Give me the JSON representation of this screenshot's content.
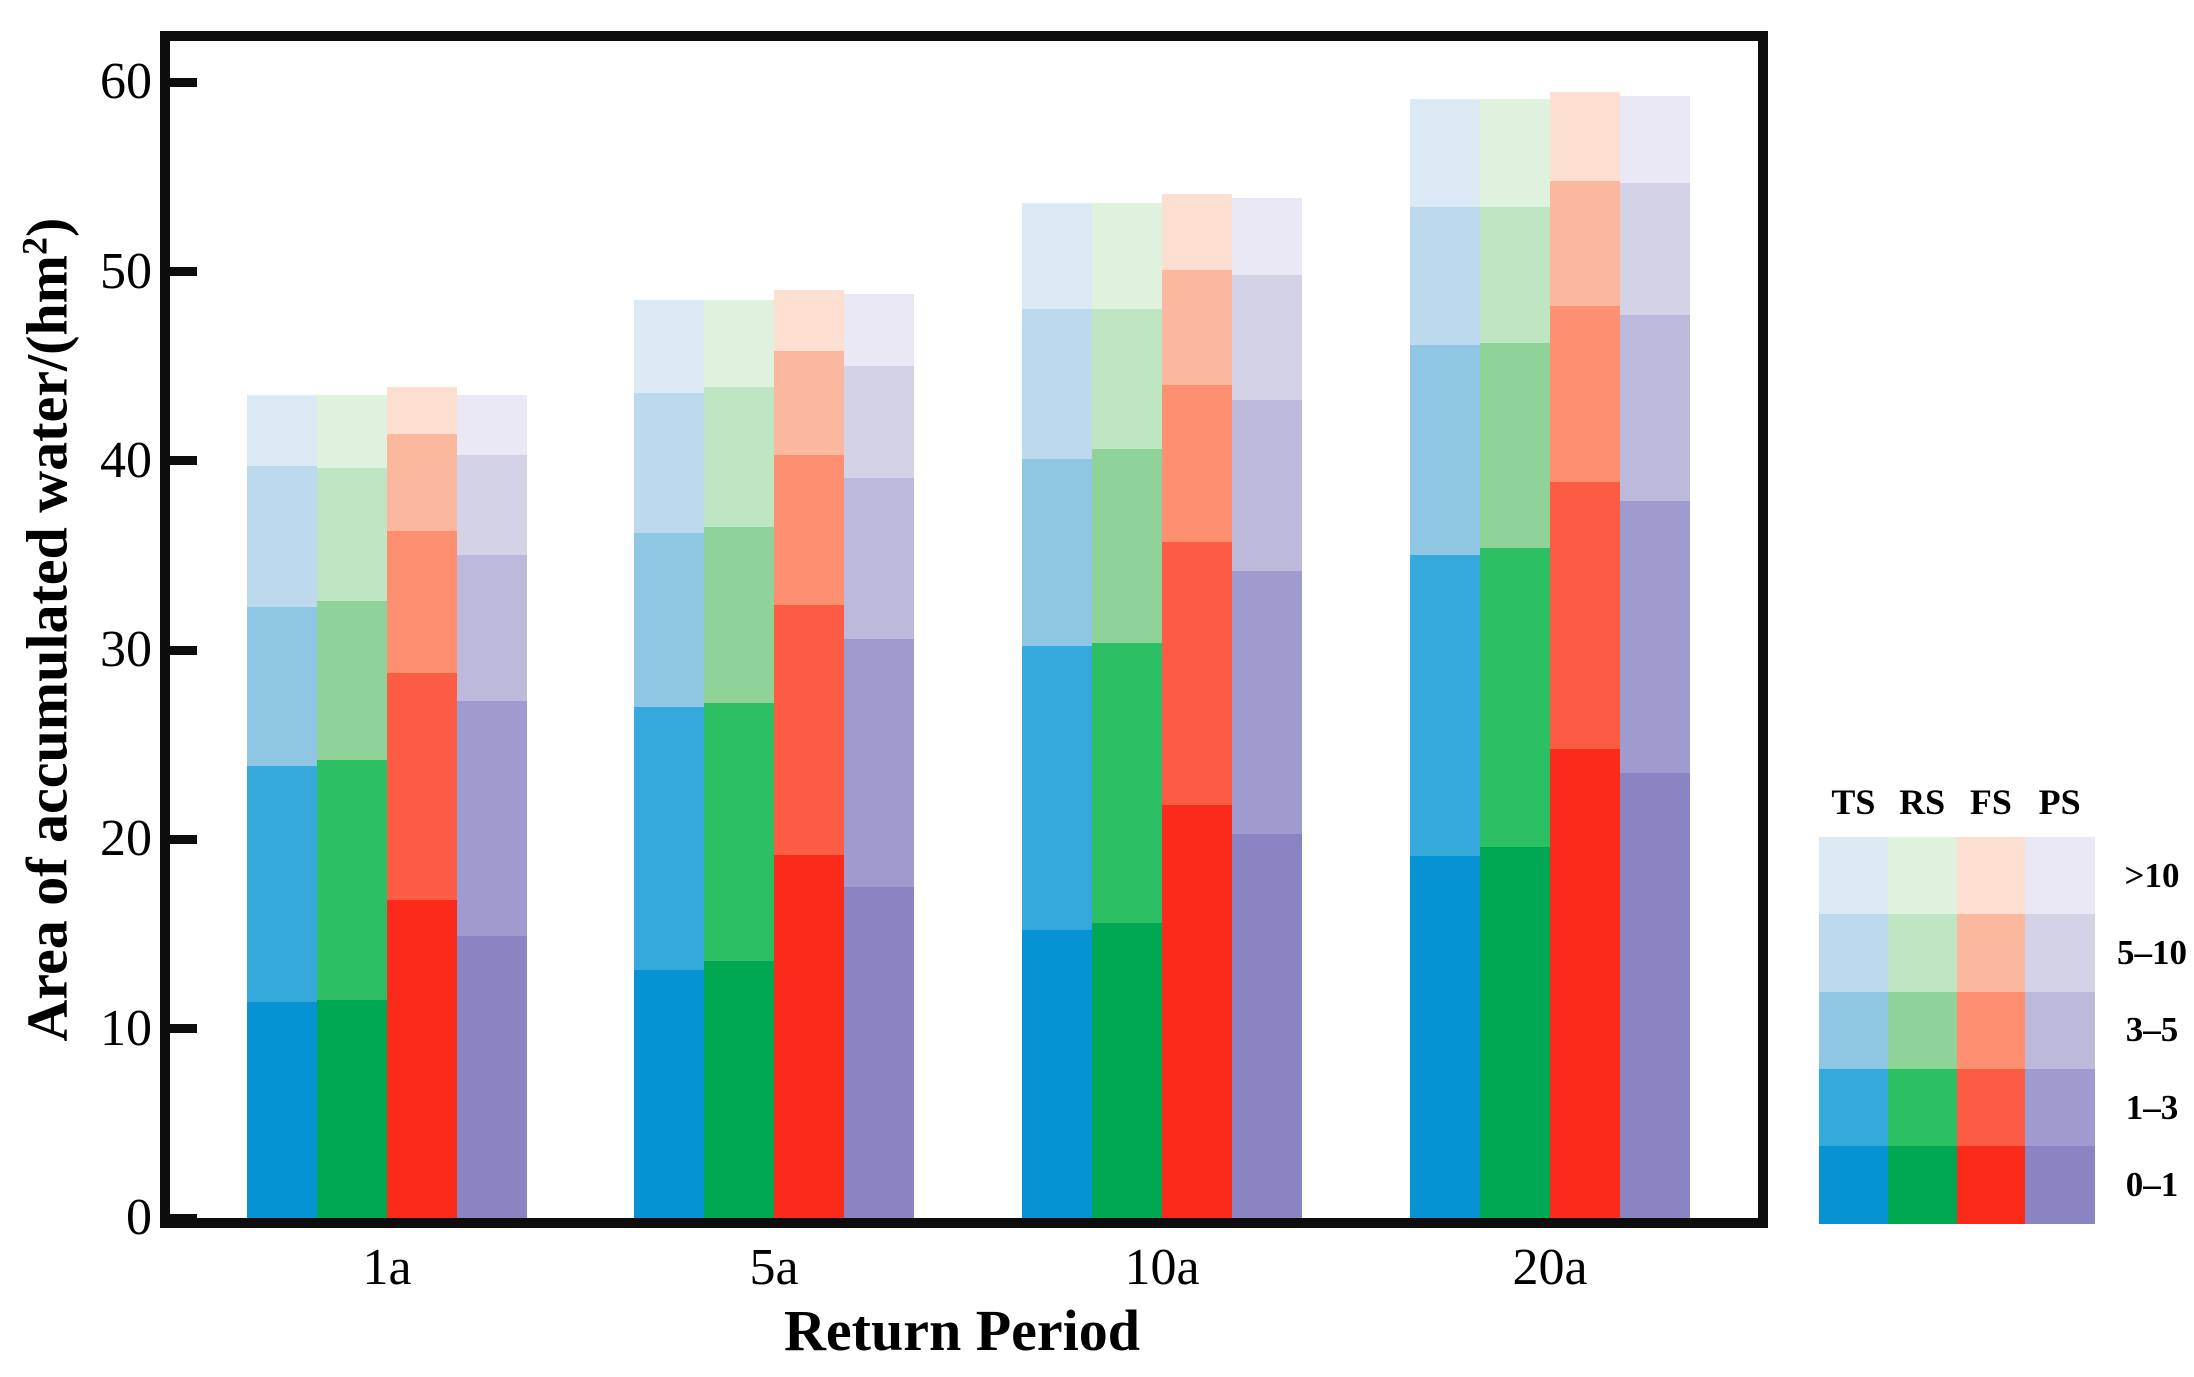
{
  "page": {
    "background": "#ffffff"
  },
  "x_axis": {
    "title": "Return Period",
    "categories": [
      "1a",
      "5a",
      "10a",
      "20a"
    ]
  },
  "y_axis": {
    "title_prefix": "Area of accumulated water/(hm",
    "title_sup": "2",
    "title_suffix": ")",
    "title_full": "Area of accumulated water/(hm2)",
    "ticks": [
      0,
      10,
      20,
      30,
      40,
      50,
      60
    ]
  },
  "legend": {
    "columns": [
      "TS",
      "RS",
      "FS",
      "PS"
    ],
    "rows": [
      ">10",
      "5–10",
      "3–5",
      "1–3",
      "0–1"
    ]
  },
  "colors": {
    "TS": [
      "#0692d3",
      "#36a9dc",
      "#8fc6e4",
      "#bcd9ee",
      "#dbe9f5"
    ],
    "RS": [
      "#00a854",
      "#2cbf63",
      "#8fd398",
      "#bfe6c3",
      "#def2dd"
    ],
    "FS": [
      "#fb2a1b",
      "#fb5c43",
      "#fe8f70",
      "#fcb89e",
      "#fddfd2"
    ],
    "PS": [
      "#8a84c2",
      "#a09bce",
      "#bcb9da",
      "#d4d2e7",
      "#e9e8f4"
    ],
    "axis": "#0d0d0d"
  },
  "chart_data": {
    "type": "bar",
    "subtype": "grouped-stacked",
    "title": "",
    "xlabel": "Return Period",
    "ylabel": "Area of accumulated water/(hm2)",
    "ylim": [
      0,
      62.2
    ],
    "grid": false,
    "legend_position": "right",
    "categories": [
      "1a",
      "5a",
      "10a",
      "20a"
    ],
    "stack_tiers": [
      "0–1",
      "1–3",
      "3–5",
      "5–10",
      ">10"
    ],
    "series": [
      {
        "name": "TS",
        "stacks": {
          "1a": [
            11.4,
            12.5,
            8.4,
            7.4,
            3.8
          ],
          "5a": [
            13.1,
            13.9,
            9.2,
            7.4,
            4.9
          ],
          "10a": [
            15.2,
            15.0,
            9.9,
            7.9,
            5.6
          ],
          "20a": [
            19.1,
            15.9,
            11.1,
            7.3,
            5.7
          ]
        }
      },
      {
        "name": "RS",
        "stacks": {
          "1a": [
            11.5,
            12.7,
            8.4,
            7.0,
            3.9
          ],
          "5a": [
            13.6,
            13.6,
            9.3,
            7.4,
            4.6
          ],
          "10a": [
            15.6,
            14.8,
            10.2,
            7.4,
            5.6
          ],
          "20a": [
            19.6,
            15.8,
            10.8,
            7.2,
            5.7
          ]
        }
      },
      {
        "name": "FS",
        "stacks": {
          "1a": [
            16.8,
            12.0,
            7.5,
            5.1,
            2.5
          ],
          "5a": [
            19.2,
            13.2,
            7.9,
            5.5,
            3.2
          ],
          "10a": [
            21.8,
            13.9,
            8.3,
            6.1,
            4.0
          ],
          "20a": [
            24.8,
            14.1,
            9.3,
            6.6,
            4.7
          ]
        }
      },
      {
        "name": "PS",
        "stacks": {
          "1a": [
            14.9,
            12.4,
            7.7,
            5.3,
            3.2
          ],
          "5a": [
            17.5,
            13.1,
            8.5,
            5.9,
            3.8
          ],
          "10a": [
            20.3,
            13.9,
            9.0,
            6.6,
            4.1
          ],
          "20a": [
            23.5,
            14.4,
            9.8,
            7.0,
            4.6
          ]
        }
      }
    ]
  }
}
